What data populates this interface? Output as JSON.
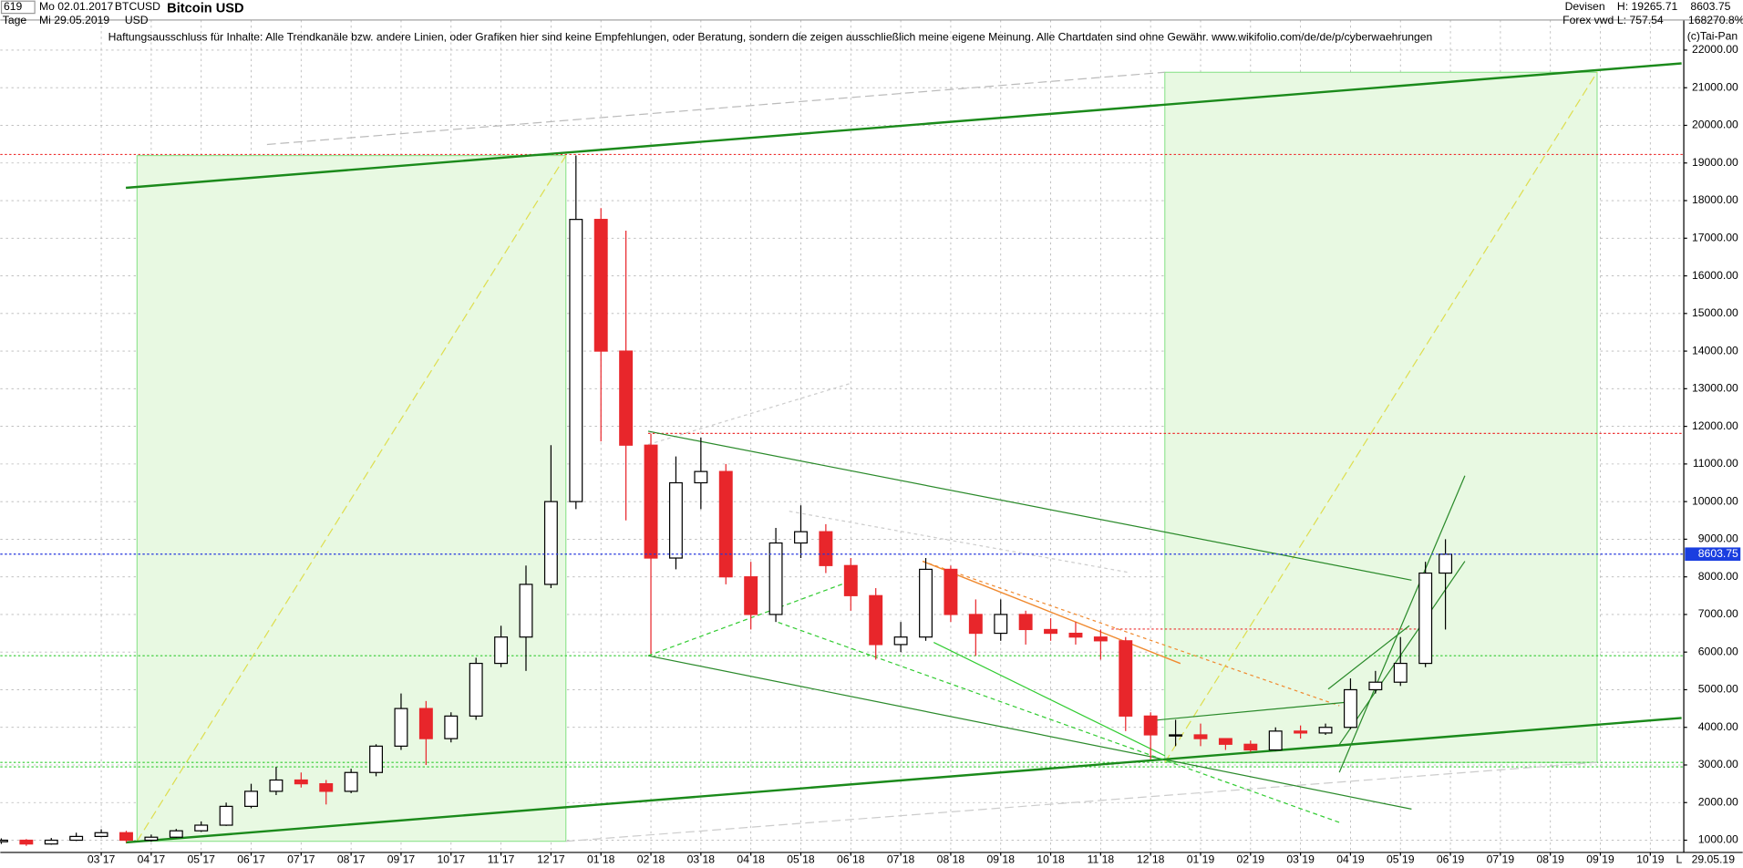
{
  "header": {
    "id": "619",
    "period": "Tage",
    "start": "Mo 02.01.2017",
    "end": "Mi 29.05.2019",
    "symbol": "BTCUSD",
    "currency": "USD",
    "name": "Bitcoin USD",
    "market": "Devisen",
    "source": "Forex vwd",
    "high": "H: 19265.71",
    "low": "L: 757.54",
    "last": "8603.75",
    "change": "168270.8%",
    "disclaimer": "Haftungsausschluss für Inhalte: Alle Trendkanäle bzw. andere Linien, oder Grafiken hier sind keine Empfehlungen, oder Beratung, sondern die zeigen ausschließlich meine eigene Meinung. Alle Chartdaten sind ohne Gewähr.  www.wikifolio.com/de/de/p/cyberwaehrungen",
    "copyright": "(c)Tai-Pan",
    "footer_l": "L",
    "footer_date": "29.05.19"
  },
  "chart_data": {
    "type": "candlestick",
    "title": "Bitcoin USD",
    "up_color": "#000000",
    "down_color": "#e8262b",
    "grid": true,
    "x": [
      0,
      0.5,
      1,
      1.5,
      2,
      2.5,
      3,
      3.5,
      4,
      4.5,
      5,
      5.5,
      6,
      6.5,
      7,
      7.5,
      8,
      8.5,
      9,
      9.5,
      10,
      10.5,
      11,
      11.5,
      12,
      12.5,
      13,
      13.5,
      14,
      14.5,
      15,
      15.5,
      16,
      16.5,
      17,
      17.5,
      18,
      18.5,
      19,
      19.5,
      20,
      20.5,
      21,
      21.5,
      22,
      22.5,
      23,
      23.5,
      24,
      24.5,
      25,
      25.5,
      26,
      26.5,
      27,
      27.5,
      28,
      28.5,
      28.9
    ],
    "open": [
      960,
      1000,
      900,
      1000,
      1100,
      1200,
      1000,
      1080,
      1250,
      1400,
      1900,
      2300,
      2600,
      2500,
      2300,
      2800,
      3500,
      4500,
      3700,
      4300,
      5700,
      6400,
      7800,
      10000,
      17500,
      14000,
      11500,
      8500,
      10500,
      10800,
      8000,
      7000,
      8900,
      9200,
      8300,
      7500,
      6200,
      6400,
      8200,
      7000,
      6500,
      7000,
      6600,
      6500,
      6400,
      6300,
      4300,
      3800,
      3800,
      3700,
      3550,
      3400,
      3900,
      3850,
      4000,
      5000,
      5200,
      5700,
      8100
    ],
    "high": [
      1050,
      1030,
      1060,
      1200,
      1290,
      1250,
      1150,
      1300,
      1500,
      2000,
      2500,
      2950,
      2800,
      2600,
      2900,
      3550,
      4900,
      4700,
      4400,
      5850,
      6700,
      8300,
      11500,
      19200,
      17800,
      17200,
      11800,
      11200,
      11700,
      11000,
      8400,
      9300,
      9900,
      9400,
      8500,
      7700,
      6800,
      8500,
      8300,
      7400,
      7400,
      7100,
      6900,
      6800,
      6600,
      6400,
      4400,
      4200,
      4100,
      3700,
      3650,
      4000,
      4050,
      4100,
      5300,
      5500,
      6400,
      8400,
      9000
    ],
    "low": [
      900,
      850,
      880,
      980,
      1080,
      940,
      960,
      1060,
      1220,
      1380,
      1850,
      2200,
      2400,
      1950,
      2250,
      2700,
      3400,
      3000,
      3600,
      4200,
      5600,
      5500,
      7700,
      9800,
      11600,
      9500,
      5950,
      8200,
      9800,
      7800,
      6600,
      6800,
      8500,
      8100,
      7100,
      5800,
      6000,
      6300,
      6800,
      5900,
      6300,
      6200,
      6300,
      6200,
      5800,
      3900,
      3150,
      3500,
      3500,
      3400,
      3350,
      3380,
      3700,
      3800,
      3950,
      4900,
      5100,
      5600,
      6600
    ],
    "close": [
      1000,
      900,
      1000,
      1100,
      1200,
      1000,
      1080,
      1250,
      1400,
      1900,
      2300,
      2600,
      2500,
      2300,
      2800,
      3500,
      4500,
      3700,
      4300,
      5700,
      6400,
      7800,
      10000,
      17500,
      14000,
      11500,
      8500,
      10500,
      10800,
      8000,
      7000,
      8900,
      9200,
      8300,
      7500,
      6200,
      6400,
      8200,
      7000,
      6500,
      7000,
      6600,
      6500,
      6400,
      6300,
      4300,
      3800,
      3800,
      3700,
      3550,
      3400,
      3900,
      3850,
      4000,
      5000,
      5200,
      5700,
      8100,
      8600
    ],
    "last_price": {
      "value": 8603.75,
      "label": "8603.75"
    },
    "xlim": [
      -0.02,
      33.67
    ],
    "ylim": [
      675,
      22800
    ],
    "xticks": [
      {
        "value": 2,
        "label": "03 17"
      },
      {
        "value": 3,
        "label": "04 17"
      },
      {
        "value": 4,
        "label": "05 17"
      },
      {
        "value": 5,
        "label": "06 17"
      },
      {
        "value": 6,
        "label": "07 17"
      },
      {
        "value": 7,
        "label": "08 17"
      },
      {
        "value": 8,
        "label": "09 17"
      },
      {
        "value": 9,
        "label": "10 17"
      },
      {
        "value": 10,
        "label": "11 17"
      },
      {
        "value": 11,
        "label": "12 17"
      },
      {
        "value": 12,
        "label": "01 18"
      },
      {
        "value": 13,
        "label": "02 18"
      },
      {
        "value": 14,
        "label": "03 18"
      },
      {
        "value": 15,
        "label": "04 18"
      },
      {
        "value": 16,
        "label": "05 18"
      },
      {
        "value": 17,
        "label": "06 18"
      },
      {
        "value": 18,
        "label": "07 18"
      },
      {
        "value": 19,
        "label": "08 18"
      },
      {
        "value": 20,
        "label": "09 18"
      },
      {
        "value": 21,
        "label": "10 18"
      },
      {
        "value": 22,
        "label": "11 18"
      },
      {
        "value": 23,
        "label": "12 18"
      },
      {
        "value": 24,
        "label": "01 19"
      },
      {
        "value": 25,
        "label": "02 19"
      },
      {
        "value": 26,
        "label": "03 19"
      },
      {
        "value": 27,
        "label": "04 19"
      },
      {
        "value": 28,
        "label": "05 19"
      },
      {
        "value": 29,
        "label": "06 19"
      },
      {
        "value": 30,
        "label": "07 19"
      },
      {
        "value": 31,
        "label": "08 19"
      },
      {
        "value": 32,
        "label": "09 19"
      },
      {
        "value": 33,
        "label": "10 19"
      }
    ],
    "yticks": [
      {
        "value": 1000,
        "label": "1000.00"
      },
      {
        "value": 2000,
        "label": "2000.00"
      },
      {
        "value": 3000,
        "label": "3000.00"
      },
      {
        "value": 4000,
        "label": "4000.00"
      },
      {
        "value": 5000,
        "label": "5000.00"
      },
      {
        "value": 6000,
        "label": "6000.00"
      },
      {
        "value": 7000,
        "label": "7000.00"
      },
      {
        "value": 8000,
        "label": "8000.00"
      },
      {
        "value": 9000,
        "label": "9000.00"
      },
      {
        "value": 10000,
        "label": "10000.00"
      },
      {
        "value": 11000,
        "label": "11000.00"
      },
      {
        "value": 12000,
        "label": "12000.00"
      },
      {
        "value": 13000,
        "label": "13000.00"
      },
      {
        "value": 14000,
        "label": "14000.00"
      },
      {
        "value": 15000,
        "label": "15000.00"
      },
      {
        "value": 16000,
        "label": "16000.00"
      },
      {
        "value": 17000,
        "label": "17000.00"
      },
      {
        "value": 18000,
        "label": "18000.00"
      },
      {
        "value": 19000,
        "label": "19000.00"
      },
      {
        "value": 20000,
        "label": "20000.00"
      },
      {
        "value": 21000,
        "label": "21000.00"
      },
      {
        "value": 22000,
        "label": "22000.00"
      }
    ]
  }
}
